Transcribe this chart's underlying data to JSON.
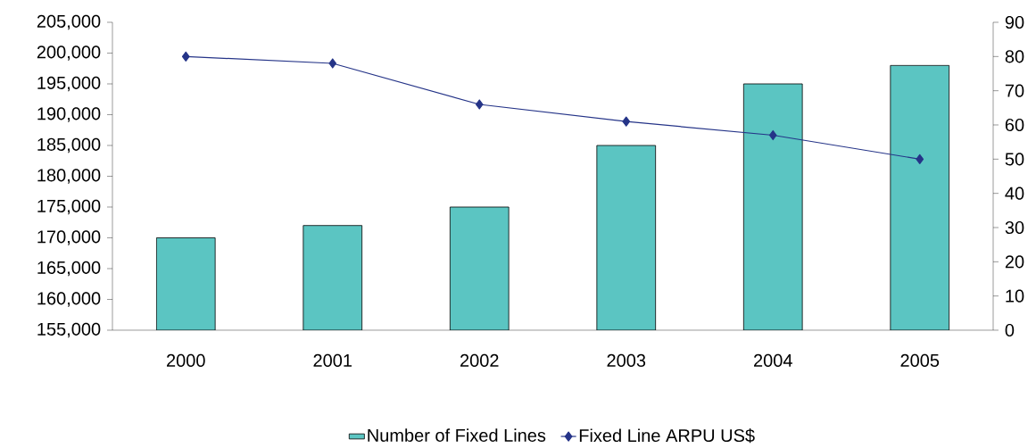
{
  "chart_data": {
    "type": "bar",
    "categories": [
      "2000",
      "2001",
      "2002",
      "2003",
      "2004",
      "2005"
    ],
    "series": [
      {
        "name": "Number of Fixed Lines",
        "color": "#5bc5c2",
        "values": [
          170000,
          172000,
          175000,
          185000,
          195000,
          198000
        ]
      },
      {
        "name": "Fixed Line ARPU US$",
        "type": "line",
        "axis": "y2",
        "color": "#253488",
        "values": [
          80,
          78,
          66,
          61,
          57,
          50
        ]
      }
    ],
    "ylim": [
      155000,
      205000
    ],
    "yticks": [
      {
        "value": 155000,
        "label": "155,000"
      },
      {
        "value": 160000,
        "label": "160,000"
      },
      {
        "value": 165000,
        "label": "165,000"
      },
      {
        "value": 170000,
        "label": "170,000"
      },
      {
        "value": 175000,
        "label": "175,000"
      },
      {
        "value": 180000,
        "label": "180,000"
      },
      {
        "value": 185000,
        "label": "185,000"
      },
      {
        "value": 190000,
        "label": "190,000"
      },
      {
        "value": 195000,
        "label": "195,000"
      },
      {
        "value": 200000,
        "label": "200,000"
      },
      {
        "value": 205000,
        "label": "205,000"
      }
    ],
    "y2lim": [
      0,
      90
    ],
    "y2ticks": [
      0,
      10,
      20,
      30,
      40,
      50,
      60,
      70,
      80,
      90
    ],
    "legend": "bottom",
    "marker": "diamond",
    "grid": false
  }
}
